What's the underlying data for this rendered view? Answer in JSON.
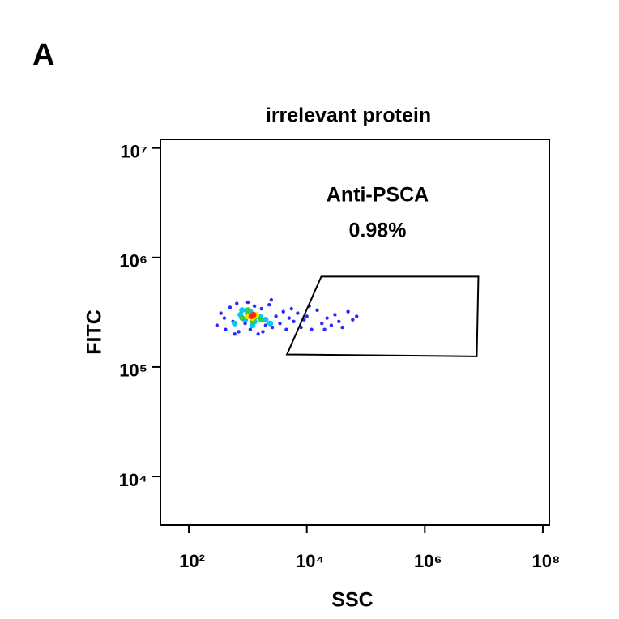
{
  "panel_label": "A",
  "chart_data": {
    "type": "scatter",
    "title": "irrelevant protein",
    "x_label": "SSC",
    "y_label": "FITC",
    "xscale": "log",
    "yscale": "log",
    "xlim": [
      33,
      129000000
    ],
    "ylim": [
      3600,
      12000000
    ],
    "xticks": [
      {
        "value": 100,
        "label": "10²"
      },
      {
        "value": 10000,
        "label": "10⁴"
      },
      {
        "value": 1000000,
        "label": "10⁶"
      },
      {
        "value": 100000000,
        "label": "10⁸"
      }
    ],
    "yticks": [
      {
        "value": 10000,
        "label": "10⁴"
      },
      {
        "value": 100000,
        "label": "10⁵"
      },
      {
        "value": 1000000,
        "label": "10⁶"
      },
      {
        "value": 10000000,
        "label": "10⁷"
      }
    ],
    "series": [
      {
        "color": "#2a2aff",
        "x": [
          300,
          350,
          420,
          500,
          560,
          650,
          700,
          800,
          900,
          1000,
          1100,
          1300,
          1500,
          1700,
          2000,
          2300,
          2600,
          3000,
          3500,
          4000,
          4500,
          5000,
          6000,
          7000,
          8000,
          9000,
          10000,
          12000,
          15000,
          18000,
          22000,
          26000,
          30000,
          35000,
          40000,
          50000,
          60000,
          70000,
          400,
          600,
          1800,
          2500,
          5500,
          11000,
          20000
        ],
        "values": [
          240000,
          310000,
          220000,
          350000,
          260000,
          380000,
          210000,
          330000,
          250000,
          390000,
          220000,
          360000,
          200000,
          340000,
          240000,
          370000,
          230000,
          290000,
          250000,
          320000,
          220000,
          280000,
          260000,
          310000,
          230000,
          270000,
          290000,
          220000,
          330000,
          250000,
          280000,
          240000,
          300000,
          260000,
          230000,
          320000,
          270000,
          290000,
          280000,
          200000,
          210000,
          410000,
          340000,
          360000,
          220000
        ]
      },
      {
        "color": "#00c8ff",
        "x": [
          600,
          750,
          900,
          1100,
          1300,
          1600,
          2000,
          2400,
          800,
          1200
        ],
        "values": [
          250000,
          300000,
          270000,
          320000,
          260000,
          290000,
          270000,
          250000,
          330000,
          240000
        ]
      },
      {
        "color": "#30d040",
        "x": [
          800,
          1000,
          1200,
          1400,
          1700,
          1000
        ],
        "values": [
          280000,
          300000,
          260000,
          290000,
          270000,
          330000
        ]
      },
      {
        "color": "#ffe000",
        "x": [
          1000,
          1200,
          1400
        ],
        "values": [
          290000,
          280000,
          300000
        ]
      },
      {
        "color": "#ff2a00",
        "x": [
          1150,
          1250
        ],
        "values": [
          290000,
          300000
        ]
      }
    ],
    "gate": {
      "name": "Anti-PSCA",
      "percent_label": "0.98%",
      "x": [
        4600,
        17600,
        8100000,
        7600000
      ],
      "y": [
        130000,
        670000,
        670000,
        125000
      ]
    }
  }
}
